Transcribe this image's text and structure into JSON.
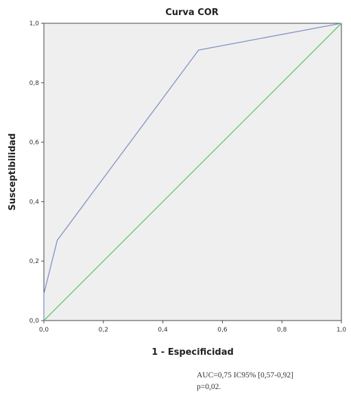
{
  "chart_data": {
    "type": "line",
    "title": "Curva COR",
    "xlabel": "1 - Especificidad",
    "ylabel": "Susceptibilidad",
    "xlim": [
      0,
      1
    ],
    "ylim": [
      0,
      1
    ],
    "x_ticks": [
      "0,0",
      "0,2",
      "0,4",
      "0,6",
      "0,8",
      "1,0"
    ],
    "y_ticks": [
      "0,0",
      "0,2",
      "0,4",
      "0,6",
      "0,8",
      "1,0"
    ],
    "grid": false,
    "series": [
      {
        "color": "#8290c8",
        "points": [
          [
            0,
            0
          ],
          [
            0,
            0.09
          ],
          [
            0.045,
            0.27
          ],
          [
            0.52,
            0.91
          ],
          [
            1.0,
            1.0
          ]
        ]
      },
      {
        "color": "#5fc46f",
        "points": [
          [
            0,
            0
          ],
          [
            1,
            1
          ]
        ]
      }
    ],
    "background": "#efefef"
  },
  "annotation": {
    "line1": "AUC=0,75 IC95% [0,57-0,92]",
    "line2": "p=0,02."
  }
}
